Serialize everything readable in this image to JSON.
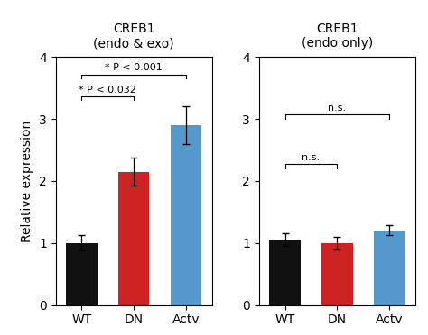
{
  "chart_data": [
    {
      "type": "bar",
      "title": "CREB1",
      "subtitle": "(endo & exo)",
      "categories": [
        "WT",
        "DN",
        "Actv"
      ],
      "values": [
        1.0,
        2.15,
        2.9
      ],
      "errors": [
        0.12,
        0.22,
        0.3
      ],
      "colors": [
        "#111111",
        "#cc2222",
        "#5599cc"
      ],
      "ylabel": "Relative expression",
      "ylim": [
        0,
        4
      ],
      "yticks": [
        0,
        1,
        2,
        3,
        4
      ],
      "annotations": [
        {
          "text": "* P < 0.032",
          "from": "WT",
          "to": "DN",
          "y": 3.3
        },
        {
          "text": "* P < 0.001",
          "from": "WT",
          "to": "Actv",
          "y": 3.65
        }
      ]
    },
    {
      "type": "bar",
      "title": "CREB1",
      "subtitle": "(endo only)",
      "categories": [
        "WT",
        "DN",
        "Actv"
      ],
      "values": [
        1.05,
        1.0,
        1.2
      ],
      "errors": [
        0.1,
        0.1,
        0.08
      ],
      "colors": [
        "#111111",
        "#cc2222",
        "#5599cc"
      ],
      "ylim": [
        0,
        4
      ],
      "yticks": [
        0,
        1,
        2,
        3,
        4
      ],
      "annotations": [
        {
          "text": "n.s.",
          "from": "WT",
          "to": "DN",
          "y": 2.2
        },
        {
          "text": "n.s.",
          "from": "WT",
          "to": "Actv",
          "y": 3.0
        }
      ]
    }
  ]
}
